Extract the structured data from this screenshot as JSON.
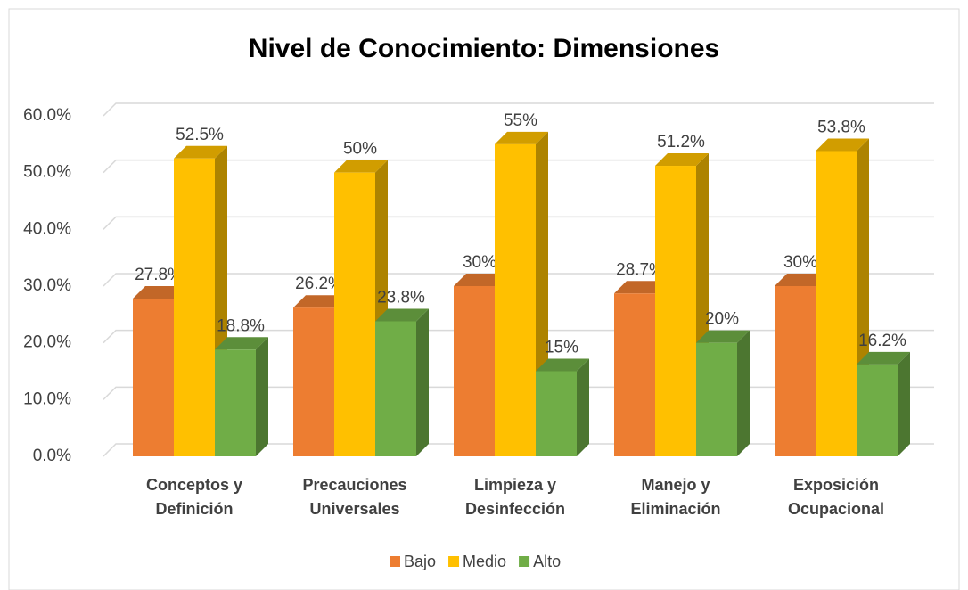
{
  "chart_data": {
    "type": "bar3d",
    "title": "Nivel de Conocimiento: Dimensiones",
    "categories": [
      [
        "Conceptos y",
        "Definición"
      ],
      [
        "Precauciones",
        "Universales"
      ],
      [
        "Limpieza y",
        "Desinfección"
      ],
      [
        "Manejo y",
        "Eliminación"
      ],
      [
        "Exposición",
        "Ocupacional"
      ]
    ],
    "series": [
      {
        "name": "Bajo",
        "color": "#ED7D31",
        "values": [
          27.8,
          26.2,
          30,
          28.7,
          30
        ],
        "value_labels": [
          "27.8%",
          "26.2%",
          "30%",
          "28.7%",
          "30%"
        ]
      },
      {
        "name": "Medio",
        "color": "#FFC000",
        "values": [
          52.5,
          50,
          55,
          51.2,
          53.8
        ],
        "value_labels": [
          "52.5%",
          "50%",
          "55%",
          "51.2%",
          "53.8%"
        ]
      },
      {
        "name": "Alto",
        "color": "#70AD47",
        "values": [
          18.8,
          23.8,
          15,
          20,
          16.2
        ],
        "value_labels": [
          "18.8%",
          "23.8%",
          "15%",
          "20%",
          "16.2%"
        ]
      }
    ],
    "ylim": [
      0,
      60
    ],
    "yticks": [
      {
        "value": 0,
        "label": "0.0%"
      },
      {
        "value": 10,
        "label": "10.0%"
      },
      {
        "value": 20,
        "label": "20.0%"
      },
      {
        "value": 30,
        "label": "30.0%"
      },
      {
        "value": 40,
        "label": "40.0%"
      },
      {
        "value": 50,
        "label": "50.0%"
      },
      {
        "value": 60,
        "label": "60.0%"
      }
    ],
    "grid": true,
    "legend": "bottom"
  }
}
